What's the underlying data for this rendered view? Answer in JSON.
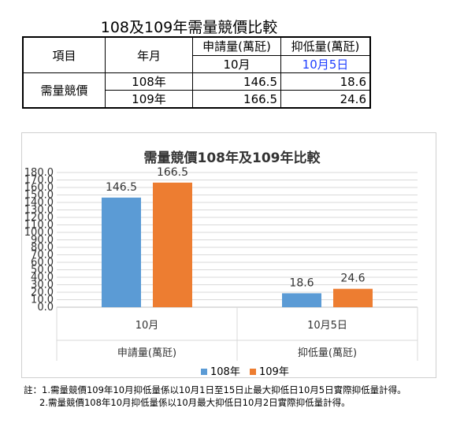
{
  "page_title": "108及109年需量競價比較",
  "table": {
    "header": {
      "item": "項目",
      "year": "年月",
      "col_a": "申請量(萬瓩)",
      "col_b": "抑低量(萬瓩)",
      "col_a_sub": "10月",
      "col_b_sub": "10月5日"
    },
    "row_label": "需量競價",
    "rows": [
      {
        "year": "108年",
        "a": "146.5",
        "b": "18.6"
      },
      {
        "year": "109年",
        "a": "166.5",
        "b": "24.6"
      }
    ],
    "highlight_color": "#1f3fff"
  },
  "chart_data": {
    "type": "bar",
    "title": "需量競價108年及109年比較",
    "categories": [
      "10月",
      "10月5日"
    ],
    "category_groups": [
      "申請量(萬瓩)",
      "抑低量(萬瓩)"
    ],
    "series": [
      {
        "name": "108年",
        "values": [
          146.5,
          18.6
        ],
        "color": "#5b9bd5"
      },
      {
        "name": "109年",
        "values": [
          166.5,
          24.6
        ],
        "color": "#ed7d31"
      }
    ],
    "ylim": [
      0,
      180
    ],
    "yticks": [
      "0.0",
      "10.0",
      "20.0",
      "30.0",
      "40.0",
      "50.0",
      "60.0",
      "70.0",
      "80.0",
      "90.0",
      "100.0",
      "110.0",
      "120.0",
      "130.0",
      "140.0",
      "150.0",
      "160.0",
      "170.0",
      "180.0"
    ],
    "grid": true,
    "legend": "bottom"
  },
  "notes": [
    "註：1.需量競價109年10月抑低量係以10月1日至15日止最大抑低日10月5日實際抑低量計得。",
    "2.需量競價108年10月抑低量係以10月最大抑低日10月2日實際抑低量計得。"
  ]
}
